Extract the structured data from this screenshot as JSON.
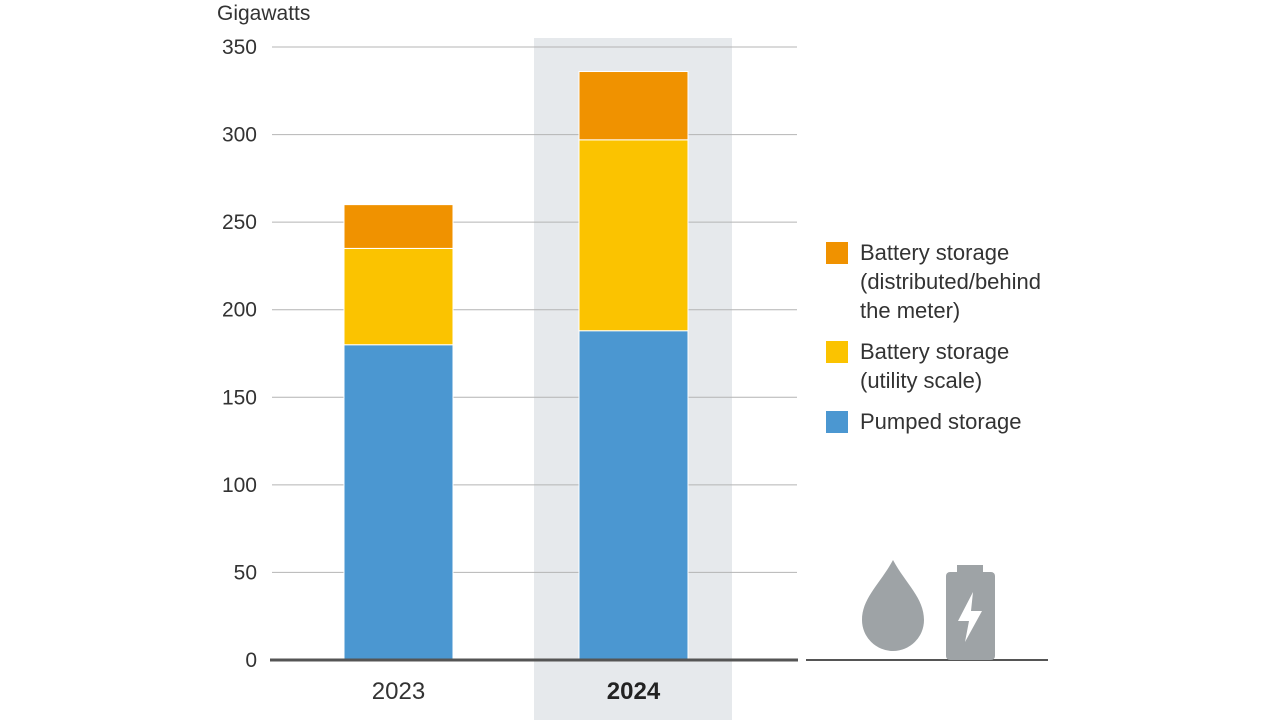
{
  "chart_data": {
    "type": "bar",
    "stacked": true,
    "ylabel": "Gigawatts",
    "ylim": [
      0,
      350
    ],
    "yticks": [
      0,
      50,
      100,
      150,
      200,
      250,
      300,
      350
    ],
    "categories": [
      "2023",
      "2024"
    ],
    "highlighted_category": "2024",
    "grid": true,
    "legend_position": "right",
    "series": [
      {
        "name": "Pumped storage",
        "color": "#4b97d1",
        "values": [
          180,
          188
        ]
      },
      {
        "name": "Battery storage\n(utility scale)",
        "color": "#fbc300",
        "values": [
          55,
          109
        ]
      },
      {
        "name": "Battery storage\n(distributed/behind\nthe meter)",
        "color": "#f09200",
        "values": [
          25,
          39
        ]
      }
    ],
    "icons": [
      "water-drop-icon",
      "battery-bolt-icon"
    ]
  }
}
